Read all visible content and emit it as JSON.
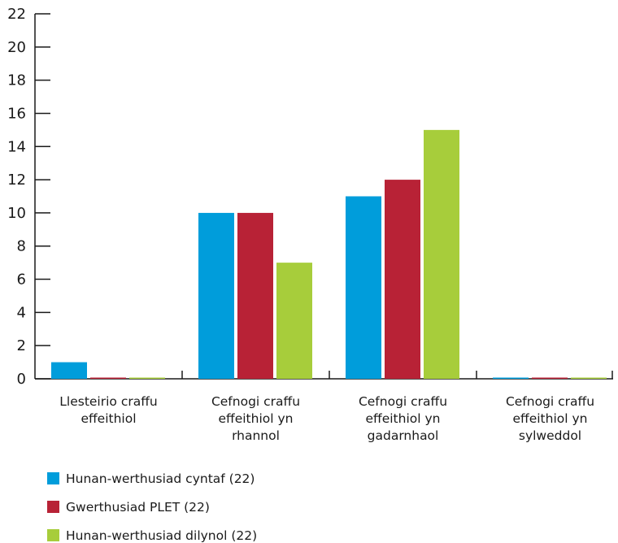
{
  "chart_data": {
    "type": "bar",
    "title": "",
    "xlabel": "",
    "ylabel": "",
    "ylim": [
      0,
      22
    ],
    "yticks": [
      0,
      2,
      4,
      6,
      8,
      10,
      12,
      14,
      16,
      18,
      20,
      22
    ],
    "grid": false,
    "legend_position": "bottom-left",
    "categories": [
      [
        "Llesteirio craffu",
        "effeithiol"
      ],
      [
        "Cefnogi craffu",
        "effeithiol yn",
        "rhannol"
      ],
      [
        "Cefnogi craffu",
        "effeithiol yn",
        "gadarnhaol"
      ],
      [
        "Cefnogi craffu",
        "effeithiol yn",
        "sylweddol"
      ]
    ],
    "series": [
      {
        "name": "Hunan-werthusiad cyntaf (22)",
        "color": "#009ddb",
        "values": [
          1,
          10,
          11,
          0
        ]
      },
      {
        "name": "Gwerthusiad PLET (22)",
        "color": "#b82236",
        "values": [
          0,
          10,
          12,
          0
        ]
      },
      {
        "name": "Hunan-werthusiad dilynol (22)",
        "color": "#a7cd3b",
        "values": [
          0,
          7,
          15,
          0
        ]
      }
    ]
  }
}
